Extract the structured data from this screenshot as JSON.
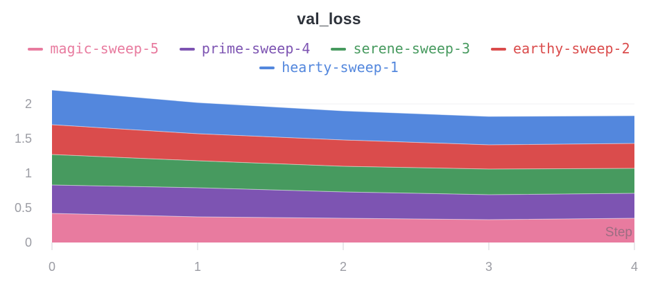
{
  "panel": {
    "title": "val_loss"
  },
  "legend": {
    "rows": [
      [
        {
          "label": "magic-sweep-5",
          "color": "#E87B9F"
        },
        {
          "label": "prime-sweep-4",
          "color": "#7D54B2"
        },
        {
          "label": "serene-sweep-3",
          "color": "#479A5F"
        },
        {
          "label": "earthy-sweep-2",
          "color": "#DA4C4C"
        }
      ],
      [
        {
          "label": "hearty-sweep-1",
          "color": "#5387DD"
        }
      ]
    ]
  },
  "chart_data": {
    "type": "area",
    "stacked": true,
    "stack_order": "bottom-to-top",
    "title": "val_loss",
    "xlabel": "Step",
    "ylabel": "",
    "x": [
      0,
      1,
      2,
      3,
      4
    ],
    "series": [
      {
        "name": "magic-sweep-5",
        "color": "#E87B9F",
        "values": [
          0.42,
          0.37,
          0.35,
          0.33,
          0.35
        ]
      },
      {
        "name": "prime-sweep-4",
        "color": "#7D54B2",
        "values": [
          0.41,
          0.42,
          0.38,
          0.36,
          0.36
        ]
      },
      {
        "name": "serene-sweep-3",
        "color": "#479A5F",
        "values": [
          0.44,
          0.39,
          0.37,
          0.37,
          0.36
        ]
      },
      {
        "name": "earthy-sweep-2",
        "color": "#DA4C4C",
        "values": [
          0.43,
          0.39,
          0.38,
          0.35,
          0.36
        ]
      },
      {
        "name": "hearty-sweep-1",
        "color": "#5387DD",
        "values": [
          0.5,
          0.45,
          0.42,
          0.41,
          0.4
        ]
      }
    ],
    "x_ticks": [
      0,
      1,
      2,
      3,
      4
    ],
    "x_tick_labels": [
      "0",
      "1",
      "2",
      "3",
      "4"
    ],
    "y_ticks": [
      0,
      0.5,
      1,
      1.5,
      2
    ],
    "y_tick_labels": [
      "0",
      "0.5",
      "1",
      "1.5",
      "2"
    ],
    "xlim": [
      0,
      4
    ],
    "ylim": [
      0,
      2.25
    ],
    "grid": "horizontal-faint",
    "legend_position": "top"
  },
  "style": {
    "title_color": "#2e333b",
    "tick_label_color": "#9b9ca3",
    "tick_mark_color": "#e0e0e4",
    "gridline_color": "#f0f0f3",
    "background": "#ffffff"
  }
}
